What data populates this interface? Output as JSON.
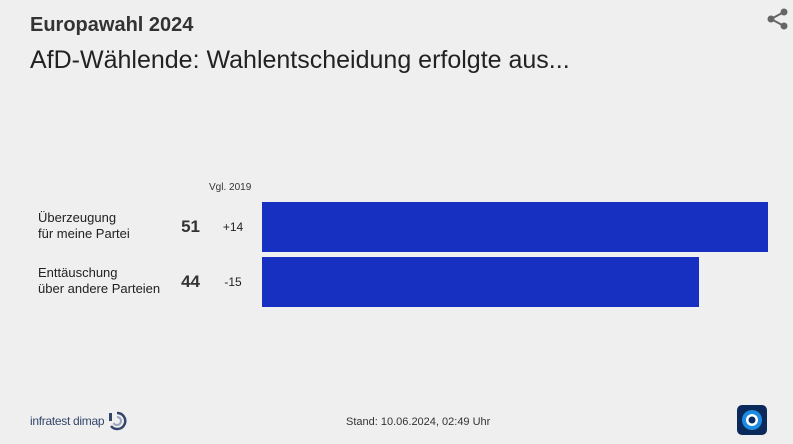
{
  "header": {
    "supertitle": "Europawahl 2024",
    "title": "AfD-Wählende: Wahlentscheidung erfolgte aus..."
  },
  "chart_data": {
    "type": "bar",
    "orientation": "horizontal",
    "comparison_header": "Vgl. 2019",
    "categories": [
      [
        "Überzeugung",
        "für meine Partei"
      ],
      [
        "Enttäuschung",
        "über andere Parteien"
      ]
    ],
    "values": [
      51,
      44
    ],
    "deltas": [
      "+14",
      "-15"
    ],
    "xlim": [
      0,
      51
    ],
    "bar_color": "#1730c2"
  },
  "footer": {
    "source": "infratest dimap",
    "stand": "Stand:  10.06.2024, 02:49 Uhr"
  },
  "icons": {
    "share": "share-icon",
    "source_logo": "infratest-dimap-logo-icon",
    "broadcaster_logo": "tagesschau-logo-icon"
  },
  "colors": {
    "background": "#efefef",
    "bar": "#1730c2"
  }
}
